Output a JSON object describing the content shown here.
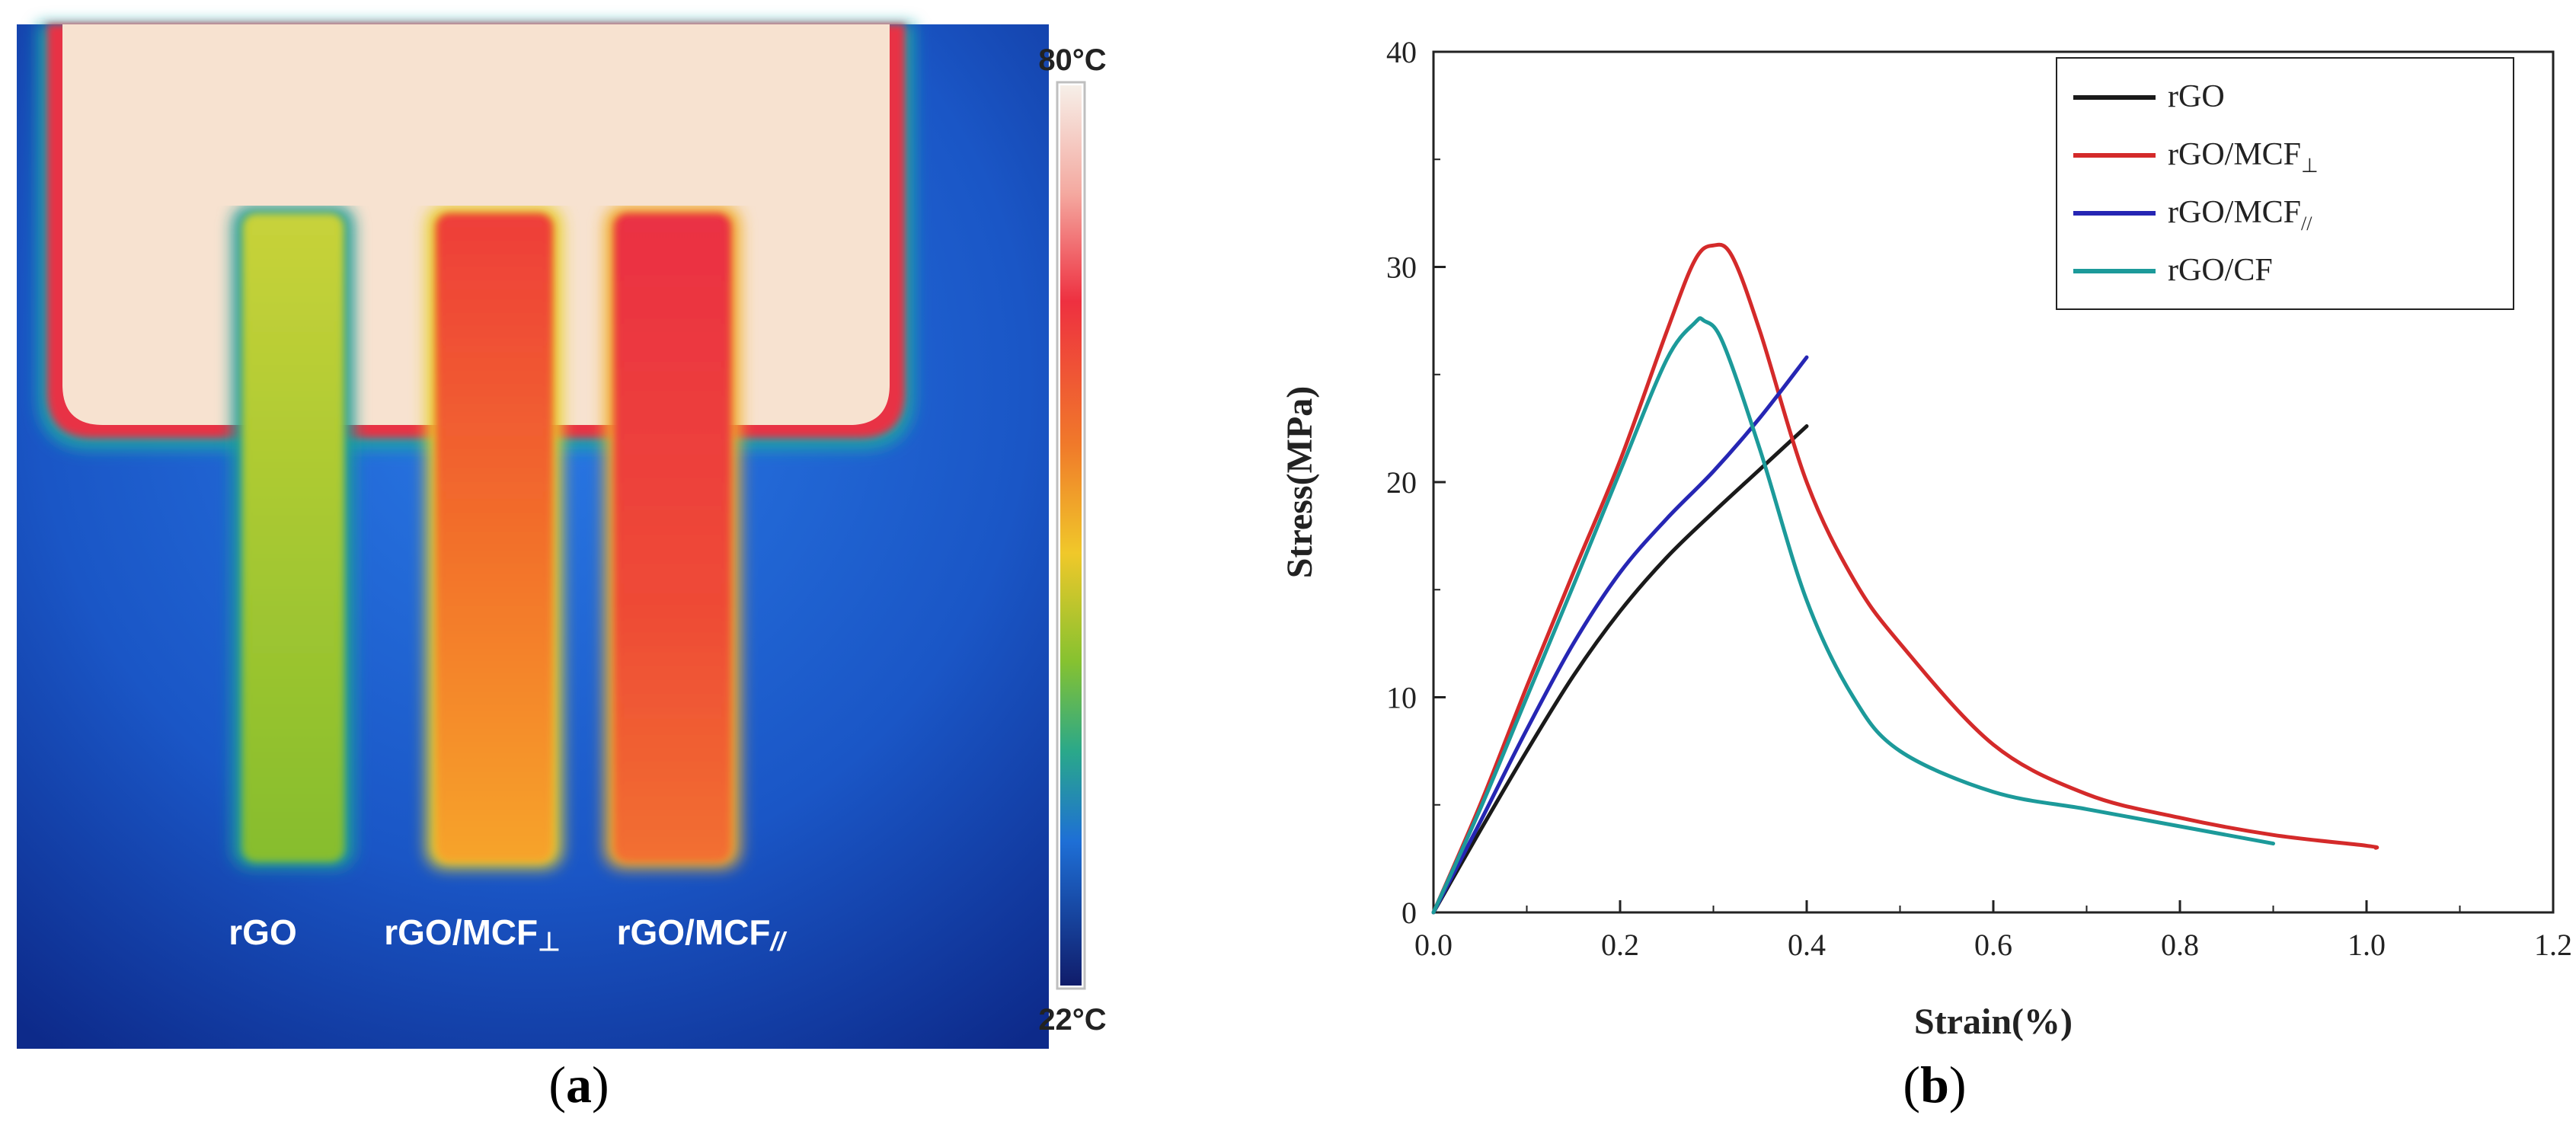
{
  "panel_a": {
    "caption_letter": "a",
    "colorbar_max_label": "80°C",
    "colorbar_min_label": "22°C",
    "sample_labels": [
      {
        "main": "rGO",
        "sub": ""
      },
      {
        "main": "rGO/MCF",
        "sub": "⊥"
      },
      {
        "main": "rGO/MCF",
        "sub": "//"
      }
    ],
    "colors": {
      "cold": "#0b1a6e",
      "background": "#1d5fd6",
      "hot_base": "#f7e0cc",
      "rgo_strip": "#9cc62a",
      "mcf_perp_strip": "#f08a30",
      "mcf_par_strip": "#ea3a3a"
    }
  },
  "panel_b": {
    "caption_letter": "b"
  },
  "chart_data": {
    "type": "line",
    "title": "",
    "xlabel": "Strain(%)",
    "ylabel": "Stress(MPa)",
    "xlim": [
      0.0,
      1.2
    ],
    "ylim": [
      0,
      40
    ],
    "xticks": [
      "0.0",
      "0.2",
      "0.4",
      "0.6",
      "0.8",
      "1.0",
      "1.2"
    ],
    "yticks": [
      "0",
      "10",
      "20",
      "30",
      "40"
    ],
    "grid": false,
    "legend_position": "top-right",
    "series": [
      {
        "name": "rGO",
        "sub": "",
        "color": "#1a1a1a",
        "x": [
          0.0,
          0.05,
          0.1,
          0.15,
          0.2,
          0.25,
          0.3,
          0.35,
          0.4
        ],
        "y": [
          0.0,
          3.8,
          7.5,
          11.0,
          14.0,
          16.5,
          18.6,
          20.6,
          22.6
        ]
      },
      {
        "name": "rGO/MCF",
        "sub": "⊥",
        "color": "#d42a2a",
        "x": [
          0.0,
          0.05,
          0.1,
          0.15,
          0.2,
          0.25,
          0.28,
          0.3,
          0.32,
          0.35,
          0.4,
          0.45,
          0.5,
          0.6,
          0.7,
          0.8,
          0.9,
          1.0,
          1.01
        ],
        "y": [
          0.0,
          5.0,
          10.5,
          15.8,
          21.0,
          27.0,
          30.3,
          31.0,
          30.5,
          27.0,
          20.0,
          15.5,
          12.5,
          7.8,
          5.5,
          4.4,
          3.6,
          3.1,
          3.0
        ]
      },
      {
        "name": "rGO/MCF",
        "sub": "//",
        "color": "#2626b4",
        "x": [
          0.0,
          0.05,
          0.1,
          0.15,
          0.2,
          0.25,
          0.3,
          0.35,
          0.4
        ],
        "y": [
          0.0,
          4.2,
          8.5,
          12.5,
          15.8,
          18.3,
          20.5,
          23.0,
          25.8
        ]
      },
      {
        "name": "rGO/CF",
        "sub": "",
        "color": "#1c9a9a",
        "x": [
          0.0,
          0.05,
          0.1,
          0.15,
          0.2,
          0.25,
          0.28,
          0.29,
          0.31,
          0.35,
          0.4,
          0.45,
          0.5,
          0.6,
          0.7,
          0.8,
          0.9
        ],
        "y": [
          0.0,
          4.8,
          10.0,
          15.2,
          20.5,
          25.7,
          27.4,
          27.5,
          26.5,
          21.5,
          14.5,
          10.0,
          7.5,
          5.6,
          4.8,
          4.0,
          3.2
        ]
      }
    ]
  }
}
